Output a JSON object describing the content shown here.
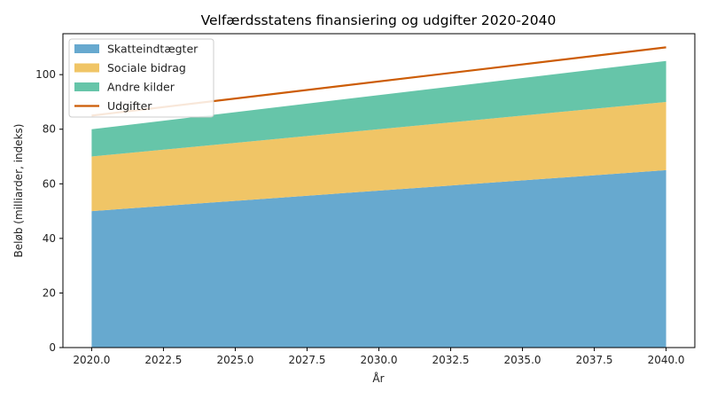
{
  "chart_data": {
    "type": "area",
    "stacked": true,
    "title": "Velfærdsstatens finansiering og udgifter 2020-2040",
    "xlabel": "År",
    "ylabel": "Beløb (milliarder, indeks)",
    "x": [
      2020,
      2040
    ],
    "xlim": [
      2019,
      2041
    ],
    "ylim": [
      0,
      115
    ],
    "xticks": [
      "2020.0",
      "2022.5",
      "2025.0",
      "2027.5",
      "2030.0",
      "2032.5",
      "2035.0",
      "2037.5",
      "2040.0"
    ],
    "yticks": [
      "0",
      "20",
      "40",
      "60",
      "80",
      "100"
    ],
    "grid": false,
    "legend_position": "top-left",
    "series": [
      {
        "name": "Skatteindtægter",
        "kind": "area",
        "values": [
          50,
          65
        ],
        "color": "#67a9cf"
      },
      {
        "name": "Sociale bidrag",
        "kind": "area",
        "values": [
          20,
          25
        ],
        "color": "#f0c566"
      },
      {
        "name": "Andre kilder",
        "kind": "area",
        "values": [
          10,
          15
        ],
        "color": "#66c5a9"
      },
      {
        "name": "Udgifter",
        "kind": "line",
        "values": [
          85,
          110
        ],
        "color": "#cc5c06"
      }
    ]
  }
}
